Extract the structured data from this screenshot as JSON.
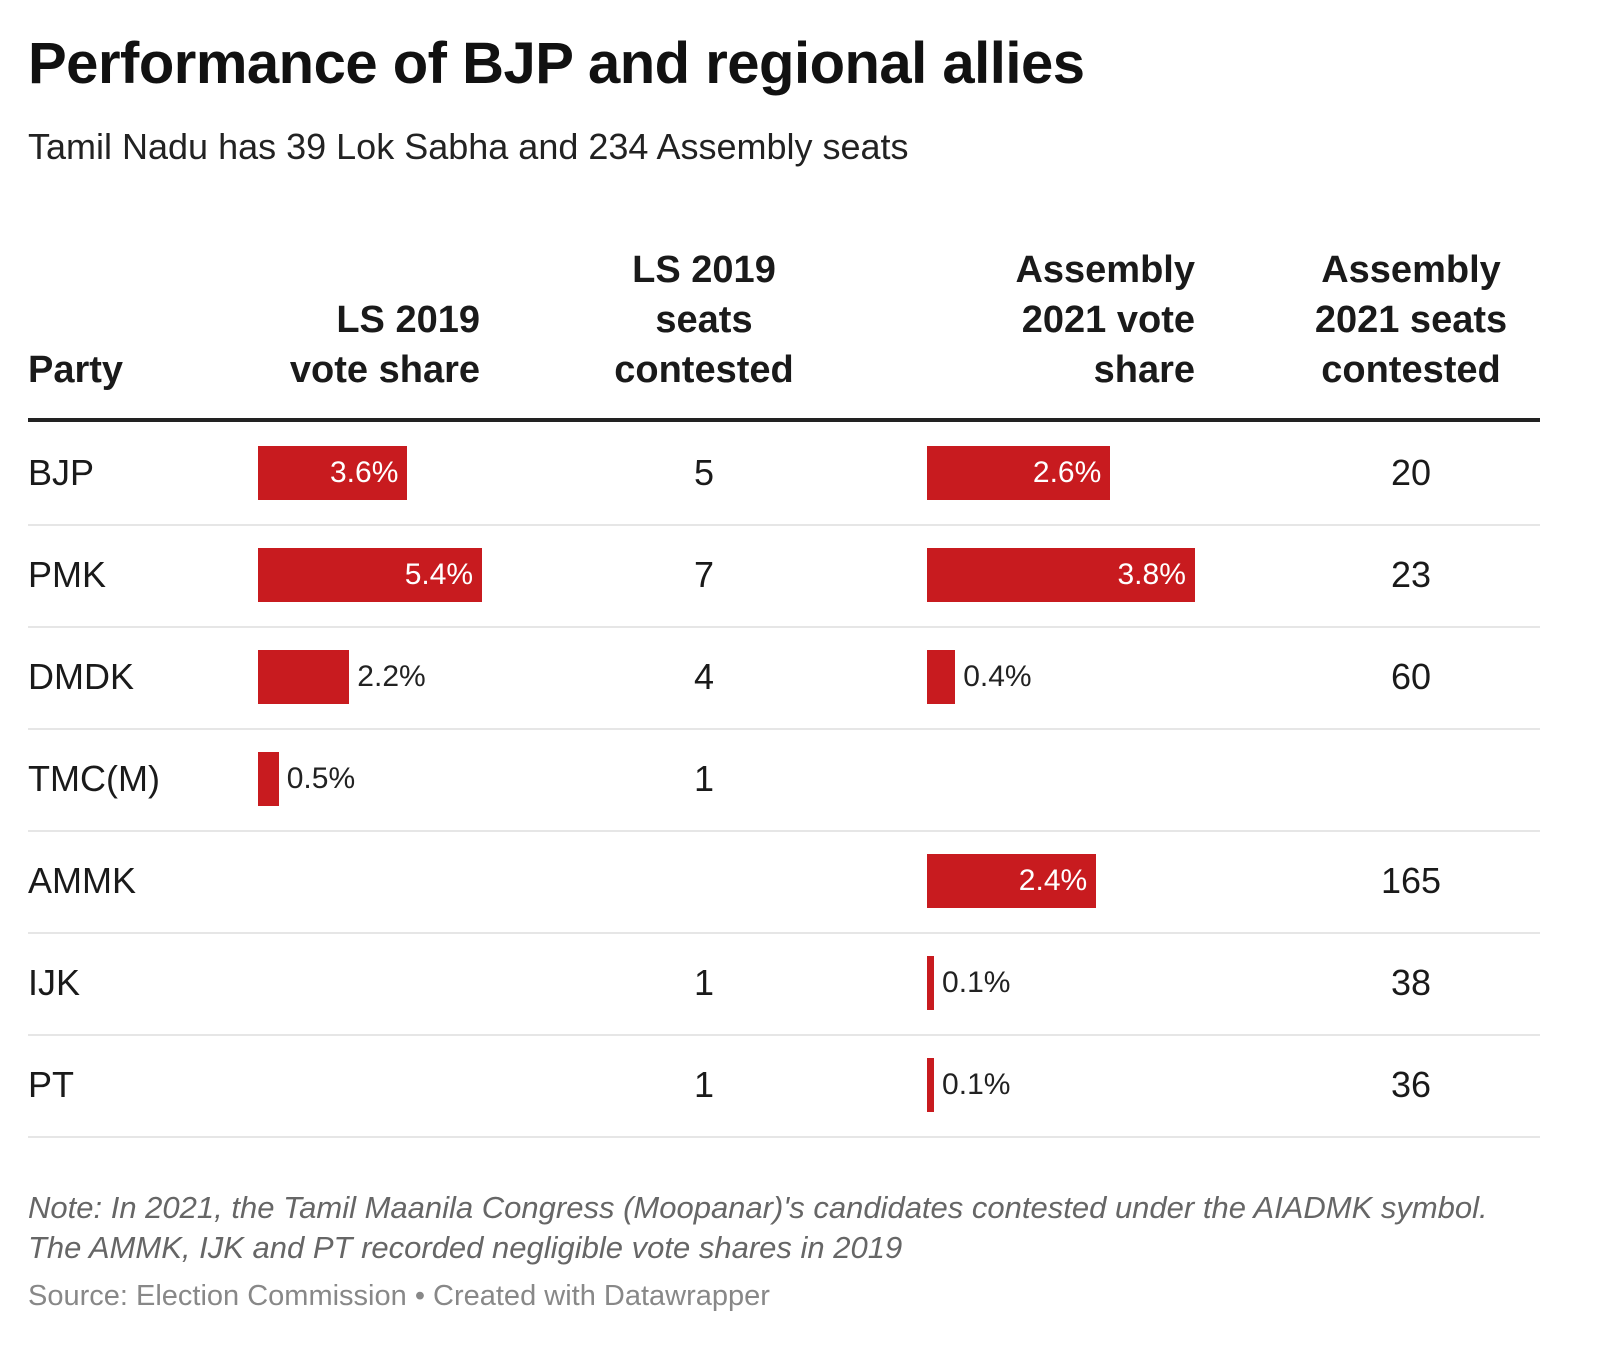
{
  "title": "Performance of BJP and regional allies",
  "subtitle": "Tamil Nadu has 39 Lok Sabha and 234 Assembly seats",
  "note": "Note: In 2021, the Tamil Maanila Congress (Moopanar)'s candidates contested under the AIADMK symbol. The AMMK, IJK and PT recorded negligible vote shares in 2019",
  "source": "Source: Election Commission • Created with Datawrapper",
  "colors": {
    "bar": "#c81b1f"
  },
  "chart_data": {
    "type": "table",
    "columns": [
      "Party",
      "LS 2019 vote share",
      "LS 2019 seats contested",
      "Assembly 2021 vote share",
      "Assembly 2021 seats contested"
    ],
    "rows": [
      {
        "party": "BJP",
        "ls_share": 3.6,
        "ls_share_label": "3.6%",
        "ls_seats": "5",
        "as_share": 2.6,
        "as_share_label": "2.6%",
        "as_seats": "20"
      },
      {
        "party": "PMK",
        "ls_share": 5.4,
        "ls_share_label": "5.4%",
        "ls_seats": "7",
        "as_share": 3.8,
        "as_share_label": "3.8%",
        "as_seats": "23"
      },
      {
        "party": "DMDK",
        "ls_share": 2.2,
        "ls_share_label": "2.2%",
        "ls_seats": "4",
        "as_share": 0.4,
        "as_share_label": "0.4%",
        "as_seats": "60"
      },
      {
        "party": "TMC(M)",
        "ls_share": 0.5,
        "ls_share_label": "0.5%",
        "ls_seats": "1",
        "as_share": null,
        "as_share_label": "",
        "as_seats": ""
      },
      {
        "party": "AMMK",
        "ls_share": null,
        "ls_share_label": "",
        "ls_seats": "",
        "as_share": 2.4,
        "as_share_label": "2.4%",
        "as_seats": "165"
      },
      {
        "party": "IJK",
        "ls_share": null,
        "ls_share_label": "",
        "ls_seats": "1",
        "as_share": 0.1,
        "as_share_label": "0.1%",
        "as_seats": "38"
      },
      {
        "party": "PT",
        "ls_share": null,
        "ls_share_label": "",
        "ls_seats": "1",
        "as_share": 0.1,
        "as_share_label": "0.1%",
        "as_seats": "36"
      }
    ]
  }
}
